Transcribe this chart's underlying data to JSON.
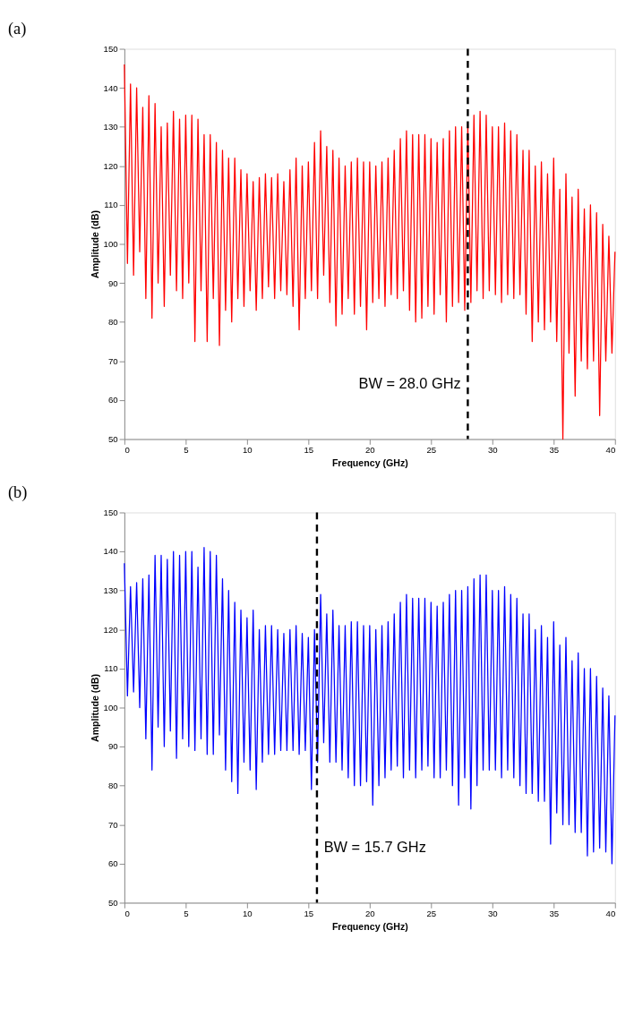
{
  "chart_data": [
    {
      "type": "line",
      "title": "(a)",
      "xlabel": "Frequency (GHz)",
      "ylabel": "Amplitude (dB)",
      "x": [
        0,
        0.25,
        0.5,
        0.75,
        1,
        1.25,
        1.5,
        1.75,
        2,
        2.25,
        2.5,
        2.75,
        3,
        3.25,
        3.5,
        3.75,
        4,
        4.25,
        4.5,
        4.75,
        5,
        5.25,
        5.5,
        5.75,
        6,
        6.25,
        6.5,
        6.75,
        7,
        7.25,
        7.5,
        7.75,
        8,
        8.25,
        8.5,
        8.75,
        9,
        9.25,
        9.5,
        9.75,
        10,
        10.25,
        10.5,
        10.75,
        11,
        11.25,
        11.5,
        11.75,
        12,
        12.25,
        12.5,
        12.75,
        13,
        13.25,
        13.5,
        13.75,
        14,
        14.25,
        14.5,
        14.75,
        15,
        15.25,
        15.5,
        15.75,
        16,
        16.25,
        16.5,
        16.75,
        17,
        17.25,
        17.5,
        17.75,
        18,
        18.25,
        18.5,
        18.75,
        19,
        19.25,
        19.5,
        19.75,
        20,
        20.25,
        20.5,
        20.75,
        21,
        21.25,
        21.5,
        21.75,
        22,
        22.25,
        22.5,
        22.75,
        23,
        23.25,
        23.5,
        23.75,
        24,
        24.25,
        24.5,
        24.75,
        25,
        25.25,
        25.5,
        25.75,
        26,
        26.25,
        26.5,
        26.75,
        27,
        27.25,
        27.5,
        27.75,
        28,
        28.25,
        28.5,
        28.75,
        29,
        29.25,
        29.5,
        29.75,
        30,
        30.25,
        30.5,
        30.75,
        31,
        31.25,
        31.5,
        31.75,
        32,
        32.25,
        32.5,
        32.75,
        33,
        33.25,
        33.5,
        33.75,
        34,
        34.25,
        34.5,
        34.75,
        35,
        35.25,
        35.5,
        35.75,
        36,
        36.25,
        36.5,
        36.75,
        37,
        37.25,
        37.5,
        37.75,
        38,
        38.25,
        38.5,
        38.75,
        39,
        39.25,
        39.5,
        39.75,
        40
      ],
      "series": [
        {
          "color": "#ff0000",
          "values": [
            146,
            95,
            141,
            92,
            140,
            98,
            135,
            86,
            138,
            81,
            136,
            90,
            130,
            84,
            131,
            92,
            134,
            88,
            132,
            86,
            133,
            90,
            133,
            75,
            132,
            88,
            128,
            75,
            128,
            86,
            126,
            74,
            124,
            83,
            122,
            80,
            122,
            86,
            119,
            84,
            118,
            88,
            116,
            83,
            117,
            86,
            118,
            89,
            117,
            86,
            118,
            88,
            116,
            87,
            119,
            84,
            122,
            78,
            120,
            86,
            121,
            88,
            126,
            86,
            129,
            92,
            125,
            85,
            124,
            79,
            122,
            82,
            120,
            86,
            121,
            82,
            122,
            84,
            121,
            78,
            121,
            85,
            120,
            86,
            121,
            84,
            122,
            87,
            124,
            86,
            127,
            88,
            129,
            83,
            128,
            80,
            128,
            81,
            128,
            84,
            127,
            82,
            126,
            87,
            127,
            80,
            129,
            84,
            130,
            85,
            130,
            83,
            131,
            85,
            133,
            88,
            134,
            86,
            133,
            88,
            130,
            87,
            130,
            85,
            131,
            87,
            129,
            86,
            128,
            87,
            124,
            82,
            124,
            75,
            120,
            80,
            121,
            78,
            118,
            80,
            122,
            75,
            114,
            50,
            118,
            72,
            112,
            61,
            114,
            70,
            109,
            68,
            110,
            70,
            108,
            56,
            105,
            70,
            102,
            72,
            98
          ]
        }
      ],
      "xlim": [
        0,
        40
      ],
      "xticks": [
        0,
        5,
        10,
        15,
        20,
        25,
        30,
        35,
        40
      ],
      "ylim": [
        50,
        150
      ],
      "yticks": [
        50,
        60,
        70,
        80,
        90,
        100,
        110,
        120,
        130,
        140,
        150
      ],
      "ref_lines": [
        {
          "axis": "x",
          "value": 28.0,
          "label": "BW = 28.0 GHz",
          "color": "#000000",
          "line_style": "dashed"
        }
      ]
    },
    {
      "type": "line",
      "title": "(b)",
      "xlabel": "Frequency (GHz)",
      "ylabel": "Amplitude (dB)",
      "x": [
        0,
        0.25,
        0.5,
        0.75,
        1,
        1.25,
        1.5,
        1.75,
        2,
        2.25,
        2.5,
        2.75,
        3,
        3.25,
        3.5,
        3.75,
        4,
        4.25,
        4.5,
        4.75,
        5,
        5.25,
        5.5,
        5.75,
        6,
        6.25,
        6.5,
        6.75,
        7,
        7.25,
        7.5,
        7.75,
        8,
        8.25,
        8.5,
        8.75,
        9,
        9.25,
        9.5,
        9.75,
        10,
        10.25,
        10.5,
        10.75,
        11,
        11.25,
        11.5,
        11.75,
        12,
        12.25,
        12.5,
        12.75,
        13,
        13.25,
        13.5,
        13.75,
        14,
        14.25,
        14.5,
        14.75,
        15,
        15.25,
        15.5,
        15.75,
        16,
        16.25,
        16.5,
        16.75,
        17,
        17.25,
        17.5,
        17.75,
        18,
        18.25,
        18.5,
        18.75,
        19,
        19.25,
        19.5,
        19.75,
        20,
        20.25,
        20.5,
        20.75,
        21,
        21.25,
        21.5,
        21.75,
        22,
        22.25,
        22.5,
        22.75,
        23,
        23.25,
        23.5,
        23.75,
        24,
        24.25,
        24.5,
        24.75,
        25,
        25.25,
        25.5,
        25.75,
        26,
        26.25,
        26.5,
        26.75,
        27,
        27.25,
        27.5,
        27.75,
        28,
        28.25,
        28.5,
        28.75,
        29,
        29.25,
        29.5,
        29.75,
        30,
        30.25,
        30.5,
        30.75,
        31,
        31.25,
        31.5,
        31.75,
        32,
        32.25,
        32.5,
        32.75,
        33,
        33.25,
        33.5,
        33.75,
        34,
        34.25,
        34.5,
        34.75,
        35,
        35.25,
        35.5,
        35.75,
        36,
        36.25,
        36.5,
        36.75,
        37,
        37.25,
        37.5,
        37.75,
        38,
        38.25,
        38.5,
        38.75,
        39,
        39.25,
        39.5,
        39.75,
        40
      ],
      "series": [
        {
          "color": "#0000ff",
          "values": [
            137,
            103,
            131,
            104,
            132,
            100,
            133,
            92,
            134,
            84,
            139,
            95,
            139,
            90,
            138,
            94,
            140,
            87,
            139,
            92,
            140,
            90,
            140,
            89,
            136,
            92,
            141,
            88,
            140,
            88,
            139,
            93,
            133,
            84,
            130,
            81,
            127,
            78,
            125,
            86,
            123,
            84,
            125,
            79,
            120,
            86,
            121,
            88,
            121,
            88,
            120,
            89,
            119,
            89,
            120,
            89,
            121,
            88,
            119,
            89,
            118,
            79,
            120,
            86,
            129,
            91,
            124,
            86,
            125,
            86,
            121,
            84,
            121,
            82,
            122,
            80,
            122,
            80,
            121,
            81,
            121,
            75,
            120,
            80,
            121,
            82,
            122,
            84,
            124,
            85,
            127,
            82,
            129,
            84,
            128,
            82,
            128,
            84,
            128,
            85,
            127,
            82,
            126,
            82,
            127,
            84,
            129,
            80,
            130,
            75,
            130,
            82,
            131,
            74,
            133,
            80,
            134,
            84,
            134,
            84,
            130,
            84,
            130,
            82,
            131,
            84,
            129,
            82,
            128,
            80,
            124,
            78,
            124,
            78,
            120,
            76,
            121,
            76,
            118,
            65,
            122,
            73,
            116,
            70,
            118,
            70,
            112,
            68,
            114,
            68,
            110,
            62,
            110,
            63,
            108,
            64,
            105,
            63,
            103,
            60,
            98
          ]
        }
      ],
      "xlim": [
        0,
        40
      ],
      "xticks": [
        0,
        5,
        10,
        15,
        20,
        25,
        30,
        35,
        40
      ],
      "ylim": [
        50,
        150
      ],
      "yticks": [
        50,
        60,
        70,
        80,
        90,
        100,
        110,
        120,
        130,
        140,
        150
      ],
      "ref_lines": [
        {
          "axis": "x",
          "value": 15.7,
          "label": "BW = 15.7 GHz",
          "color": "#000000",
          "line_style": "dashed"
        }
      ]
    }
  ]
}
